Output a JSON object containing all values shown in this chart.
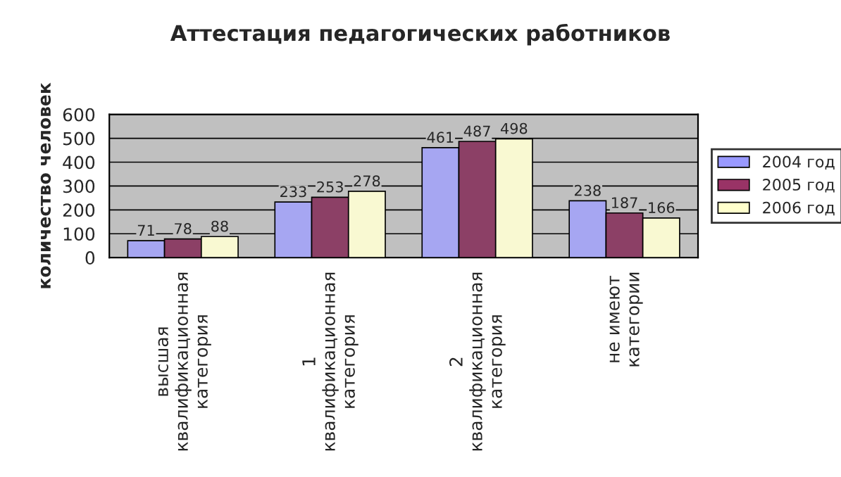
{
  "chart_data": {
    "type": "bar",
    "title": "Аттестация педагогических работников",
    "ylabel": "количество человек",
    "categories": [
      "высшая\nквалификационная\nкатегория",
      "1\nквалификационная\nкатегория",
      "2\nквалификационная\nкатегория",
      "не имеют\nкатегории"
    ],
    "series": [
      {
        "name": "2004 год",
        "color": "#9999ff",
        "values": [
          71,
          233,
          461,
          238
        ]
      },
      {
        "name": "2005 год",
        "color": "#993366",
        "values": [
          78,
          253,
          487,
          187
        ]
      },
      {
        "name": "2006 год",
        "color": "#ffffcc",
        "values": [
          88,
          278,
          498,
          166
        ]
      }
    ],
    "ylim": [
      0,
      600
    ],
    "yticks": [
      0,
      100,
      200,
      300,
      400,
      500,
      600
    ],
    "grid": "y",
    "legend": "right",
    "data_labels": true
  }
}
